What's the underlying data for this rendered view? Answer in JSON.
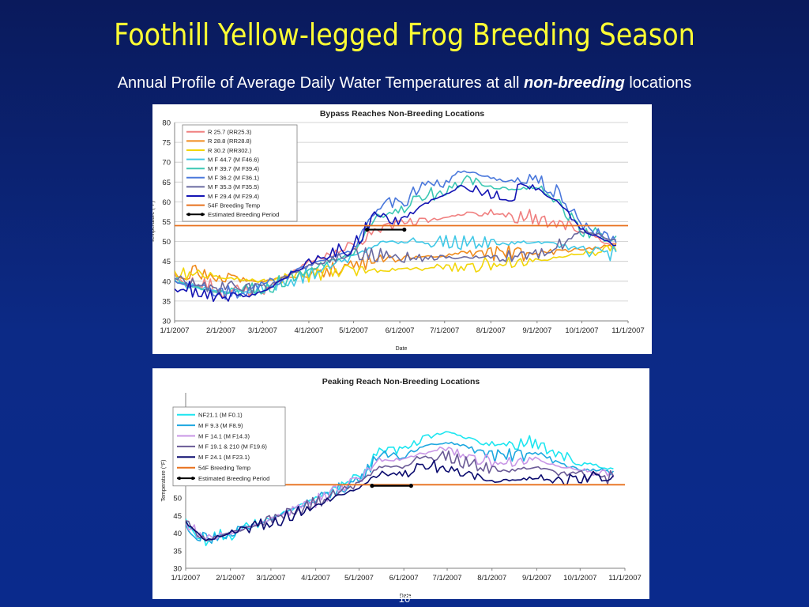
{
  "slide": {
    "title": "Foothill Yellow-legged Frog Breeding Season",
    "subtitle_pre": "Annual Profile of Average Daily Water Temperatures at all ",
    "subtitle_em": "non-breeding",
    "subtitle_post": " locations",
    "page_number": "10",
    "title_color": "#ffff33"
  },
  "chart_data": [
    {
      "type": "line",
      "title": "Bypass Reaches Non-Breeding Locations",
      "xlabel": "Date",
      "ylabel": "Temperature (°F)",
      "ylim": [
        30,
        80
      ],
      "yticks": [
        30,
        35,
        40,
        45,
        50,
        55,
        60,
        65,
        70,
        75,
        80
      ],
      "xlim": [
        "2007-01-01",
        "2007-11-01"
      ],
      "xtick_labels": [
        "1/1/2007",
        "2/1/2007",
        "3/1/2007",
        "4/1/2007",
        "5/1/2007",
        "6/1/2007",
        "7/1/2007",
        "8/1/2007",
        "9/1/2007",
        "10/1/2007",
        "11/1/2007"
      ],
      "grid": true,
      "legend": "top-left",
      "series": [
        {
          "name": "R 25.7 (RR25.3)",
          "color": "#f08080",
          "x": [
            "2007-01-01",
            "2007-02-01",
            "2007-03-01",
            "2007-03-20",
            "2007-04-01",
            "2007-04-20",
            "2007-05-01",
            "2007-05-15",
            "2007-06-01",
            "2007-06-15",
            "2007-07-01",
            "2007-07-15",
            "2007-08-01",
            "2007-08-15",
            "2007-09-01",
            "2007-09-15",
            "2007-10-01",
            "2007-10-15",
            "2007-10-25"
          ],
          "y": [
            41,
            38,
            37,
            42,
            45,
            47,
            49,
            53,
            55,
            55,
            56,
            57,
            57,
            56,
            56,
            55,
            53,
            50,
            49
          ]
        },
        {
          "name": "R 28.8 (RR28.8)",
          "color": "#f08c1e",
          "x": [
            "2007-01-01",
            "2007-02-01",
            "2007-03-01",
            "2007-04-01",
            "2007-05-01",
            "2007-06-01",
            "2007-07-01",
            "2007-08-01",
            "2007-09-01",
            "2007-10-01",
            "2007-10-25"
          ],
          "y": [
            43,
            41,
            40,
            42,
            44,
            46,
            46.5,
            47,
            47,
            48,
            49
          ]
        },
        {
          "name": "R 30.2 (RR302.)",
          "color": "#f2d60a",
          "x": [
            "2007-01-01",
            "2007-02-01",
            "2007-03-01",
            "2007-04-01",
            "2007-05-01",
            "2007-06-01",
            "2007-07-01",
            "2007-08-01",
            "2007-09-01",
            "2007-10-01",
            "2007-10-25"
          ],
          "y": [
            42,
            41,
            40,
            41.5,
            42.5,
            43,
            43.5,
            44,
            45,
            47,
            48
          ]
        },
        {
          "name": "M F 44.7 (M F46.6)",
          "color": "#40c8e6",
          "x": [
            "2007-01-01",
            "2007-02-01",
            "2007-03-01",
            "2007-04-01",
            "2007-05-01",
            "2007-05-20",
            "2007-06-01",
            "2007-07-01",
            "2007-08-01",
            "2007-09-01",
            "2007-10-01",
            "2007-10-25"
          ],
          "y": [
            40,
            37,
            38,
            42,
            46,
            50,
            50,
            50,
            49.5,
            50,
            48,
            47
          ]
        },
        {
          "name": "M F 39.7 (M F39.4)",
          "color": "#3cc8b4",
          "x": [
            "2007-01-01",
            "2007-02-01",
            "2007-03-01",
            "2007-04-01",
            "2007-05-01",
            "2007-05-15",
            "2007-06-01",
            "2007-06-15",
            "2007-07-01",
            "2007-07-15",
            "2007-08-01",
            "2007-08-15",
            "2007-09-01",
            "2007-09-15",
            "2007-10-01",
            "2007-10-25"
          ],
          "y": [
            40,
            37,
            38,
            43,
            47,
            56,
            58,
            61,
            63,
            66,
            64,
            63,
            64,
            60,
            53,
            50
          ]
        },
        {
          "name": "M F 36.2 (M F36.1)",
          "color": "#4a78dc",
          "x": [
            "2007-01-01",
            "2007-02-01",
            "2007-03-01",
            "2007-04-01",
            "2007-05-01",
            "2007-05-15",
            "2007-06-01",
            "2007-06-15",
            "2007-07-01",
            "2007-07-15",
            "2007-08-01",
            "2007-08-15",
            "2007-09-01",
            "2007-09-15",
            "2007-10-01",
            "2007-10-25"
          ],
          "y": [
            40,
            37,
            38,
            44,
            48,
            58,
            60,
            63,
            65,
            68,
            66,
            65,
            66,
            62,
            54,
            50
          ]
        },
        {
          "name": "M F 35.3 (M F35.5)",
          "color": "#6a6aa0",
          "x": [
            "2007-01-01",
            "2007-02-01",
            "2007-03-01",
            "2007-04-01",
            "2007-05-01",
            "2007-06-01",
            "2007-07-01",
            "2007-08-01",
            "2007-09-01",
            "2007-09-20",
            "2007-10-01",
            "2007-10-25"
          ],
          "y": [
            41,
            38,
            38,
            44,
            47,
            46,
            46,
            46,
            47,
            50,
            53,
            50
          ]
        },
        {
          "name": "M F 29.4 (M F29.4)",
          "color": "#1414b4",
          "x": [
            "2007-01-01",
            "2007-02-01",
            "2007-03-01",
            "2007-04-01",
            "2007-05-01",
            "2007-05-15",
            "2007-06-01",
            "2007-06-15",
            "2007-07-01",
            "2007-07-15",
            "2007-08-01",
            "2007-08-15",
            "2007-09-01",
            "2007-09-15",
            "2007-10-01",
            "2007-10-25"
          ],
          "y": [
            39,
            36,
            37,
            45,
            49,
            56,
            55,
            59,
            62,
            64,
            62,
            62,
            64,
            60,
            53,
            49
          ]
        },
        {
          "name": "54F Breeding Temp",
          "color": "#e8701c",
          "x": [
            "2007-01-01",
            "2007-11-01"
          ],
          "y": [
            54,
            54
          ]
        },
        {
          "name": "Estimated Breeding Period",
          "color": "#000000",
          "marker": "circle",
          "x": [
            "2007-05-10",
            "2007-06-04"
          ],
          "y": [
            53,
            53
          ]
        }
      ]
    },
    {
      "type": "line",
      "title": "Peaking Reach Non-Breeding Locations",
      "xlabel": "Date",
      "ylabel": "Temperature (°F)",
      "ylim": [
        30,
        80
      ],
      "yticks": [
        30,
        35,
        40,
        45,
        50
      ],
      "xlim": [
        "2007-01-01",
        "2007-11-01"
      ],
      "xtick_labels": [
        "1/1/2007",
        "2/1/2007",
        "3/1/2007",
        "4/1/2007",
        "5/1/2007",
        "6/1/2007",
        "7/1/2007",
        "8/1/2007",
        "9/1/2007",
        "10/1/2007",
        "11/1/2007"
      ],
      "grid": false,
      "legend": "top-left",
      "series": [
        {
          "name": "NF21.1 (M F0.1)",
          "color": "#1ee6f0",
          "x": [
            "2007-01-01",
            "2007-01-15",
            "2007-02-01",
            "2007-03-01",
            "2007-04-01",
            "2007-05-01",
            "2007-05-15",
            "2007-06-01",
            "2007-06-15",
            "2007-07-01",
            "2007-07-15",
            "2007-08-01",
            "2007-08-15",
            "2007-09-01",
            "2007-09-15",
            "2007-10-01",
            "2007-10-15",
            "2007-10-25"
          ],
          "y": [
            43,
            38,
            40,
            44,
            50,
            56,
            64,
            64,
            67,
            69,
            67,
            65,
            65,
            66,
            63,
            60,
            59,
            58
          ]
        },
        {
          "name": "M F 9.3 (M F8.9)",
          "color": "#1ea8e0",
          "x": [
            "2007-01-01",
            "2007-01-15",
            "2007-02-01",
            "2007-03-01",
            "2007-04-01",
            "2007-05-01",
            "2007-05-15",
            "2007-06-01",
            "2007-06-15",
            "2007-07-01",
            "2007-07-15",
            "2007-08-01",
            "2007-08-15",
            "2007-09-01",
            "2007-09-15",
            "2007-10-01",
            "2007-10-15",
            "2007-10-25"
          ],
          "y": [
            43,
            38,
            40,
            44,
            50,
            55,
            62,
            62,
            65,
            66,
            64,
            62,
            62,
            63,
            60,
            58,
            58,
            57
          ]
        },
        {
          "name": "M F 14.1 (M F14.3)",
          "color": "#c896e6",
          "x": [
            "2007-01-01",
            "2007-01-15",
            "2007-02-01",
            "2007-03-01",
            "2007-04-01",
            "2007-05-01",
            "2007-05-15",
            "2007-06-01",
            "2007-06-15",
            "2007-07-01",
            "2007-07-15",
            "2007-08-01",
            "2007-08-15",
            "2007-09-01",
            "2007-09-15",
            "2007-10-01",
            "2007-10-15",
            "2007-10-25"
          ],
          "y": [
            43,
            38,
            40,
            44,
            49,
            55,
            61,
            61,
            63,
            64,
            62,
            60,
            60,
            61,
            59,
            58,
            57,
            56
          ]
        },
        {
          "name": "M F 19.1 & 210 (M F19.6)",
          "color": "#6a5a96",
          "x": [
            "2007-01-01",
            "2007-01-15",
            "2007-02-01",
            "2007-03-01",
            "2007-04-01",
            "2007-05-01",
            "2007-05-15",
            "2007-06-01",
            "2007-06-15",
            "2007-07-01",
            "2007-07-15",
            "2007-08-01",
            "2007-08-15",
            "2007-09-01",
            "2007-09-15",
            "2007-10-01",
            "2007-10-15",
            "2007-10-25"
          ],
          "y": [
            43,
            38,
            40,
            44,
            49,
            54,
            59,
            59,
            62,
            62,
            60,
            58,
            58,
            59,
            57,
            57,
            56,
            56
          ]
        },
        {
          "name": "M F 24.1 (M F23.1)",
          "color": "#0a0a6e",
          "x": [
            "2007-01-01",
            "2007-01-15",
            "2007-02-01",
            "2007-03-01",
            "2007-04-01",
            "2007-05-01",
            "2007-05-15",
            "2007-06-01",
            "2007-06-15",
            "2007-07-01",
            "2007-07-15",
            "2007-08-01",
            "2007-08-15",
            "2007-09-01",
            "2007-09-15",
            "2007-10-01",
            "2007-10-15",
            "2007-10-25"
          ],
          "y": [
            43,
            38,
            40,
            43,
            48,
            53,
            57,
            57,
            59,
            59,
            57,
            55,
            55,
            56,
            55,
            56,
            56,
            55
          ]
        },
        {
          "name": "54F Breeding Temp",
          "color": "#e8701c",
          "x": [
            "2007-01-01",
            "2007-11-01"
          ],
          "y": [
            53.8,
            53.8
          ]
        },
        {
          "name": "Estimated Breeding Period",
          "color": "#000000",
          "marker": "circle",
          "x": [
            "2007-05-10",
            "2007-06-06"
          ],
          "y": [
            53.5,
            53.5
          ]
        }
      ]
    }
  ]
}
